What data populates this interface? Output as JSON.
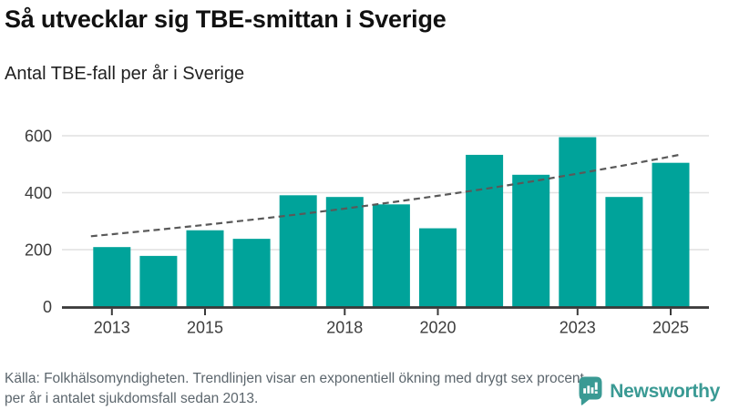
{
  "chart_data": {
    "type": "bar",
    "title": "Så utvecklar sig TBE-smittan i Sverige",
    "subtitle": "Antal TBE-fall per år i Sverige",
    "categories": [
      2013,
      2014,
      2015,
      2016,
      2017,
      2018,
      2019,
      2020,
      2021,
      2022,
      2023,
      2024,
      2025
    ],
    "values": [
      209,
      178,
      268,
      238,
      391,
      385,
      359,
      275,
      533,
      463,
      595,
      385,
      505
    ],
    "x_ticks": [
      2013,
      2015,
      2018,
      2020,
      2023,
      2025
    ],
    "y_ticks": [
      0,
      200,
      400,
      600
    ],
    "ylim": [
      0,
      620
    ],
    "grid": true,
    "legend": "none",
    "bar_color": "#00A39A",
    "trend_line": {
      "style": "dashed",
      "color": "#595959",
      "description": "exponentiell trend ca 6 % per år",
      "values": [
        254,
        270,
        287,
        305,
        324,
        344,
        366,
        389,
        413,
        439,
        467,
        496,
        527
      ]
    }
  },
  "footer": {
    "source_text": "Källa: Folkhälsomyndigheten. Trendlinjen visar en exponentiell ökning med drygt sex procent per år i antalet sjukdomsfall sedan 2013.",
    "brand": "Newsworthy"
  },
  "colors": {
    "bar": "#00A39A",
    "trend": "#595959",
    "brand_teal": "#3A9A94",
    "grid": "#E1E1E1",
    "axis": "#3A3A3A",
    "tick_label": "#3D3D3D",
    "title": "#111111",
    "source_gray": "#5C666D"
  }
}
